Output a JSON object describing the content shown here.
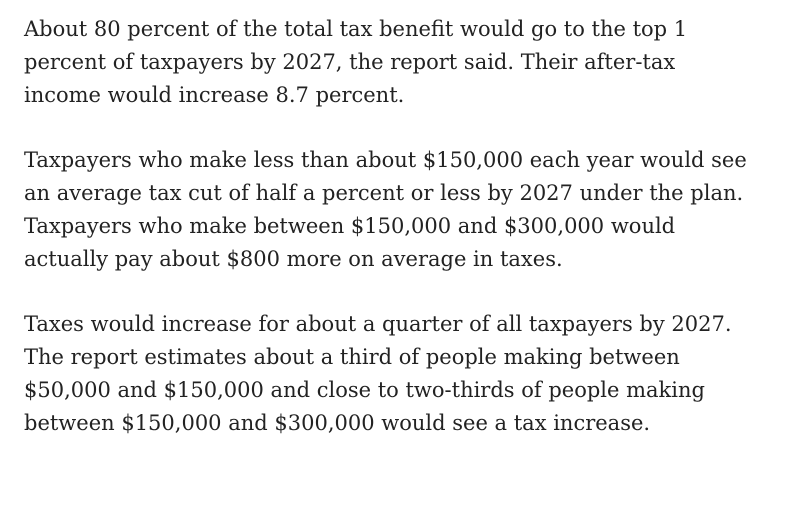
{
  "article": {
    "paragraphs": [
      {
        "lines": [
          "About 80 percent of the total tax benefit would go to the top 1",
          "percent of taxpayers by 2027, the report said. Their after-tax",
          "income would increase 8.7 percent."
        ]
      },
      {
        "lines": [
          "Taxpayers who make less than about $150,000 each year would see",
          "an average tax cut of half a percent or less by 2027 under the plan.",
          "Taxpayers who make between $150,000 and $300,000 would",
          "actually pay about $800 more on average in taxes."
        ]
      },
      {
        "lines": [
          "Taxes would increase for about a quarter of all taxpayers by 2027.",
          "The report estimates about a third of people making between",
          "$50,000 and $150,000 and close to two-thirds of people making",
          "between $150,000 and $300,000 would see a tax increase."
        ]
      }
    ]
  }
}
